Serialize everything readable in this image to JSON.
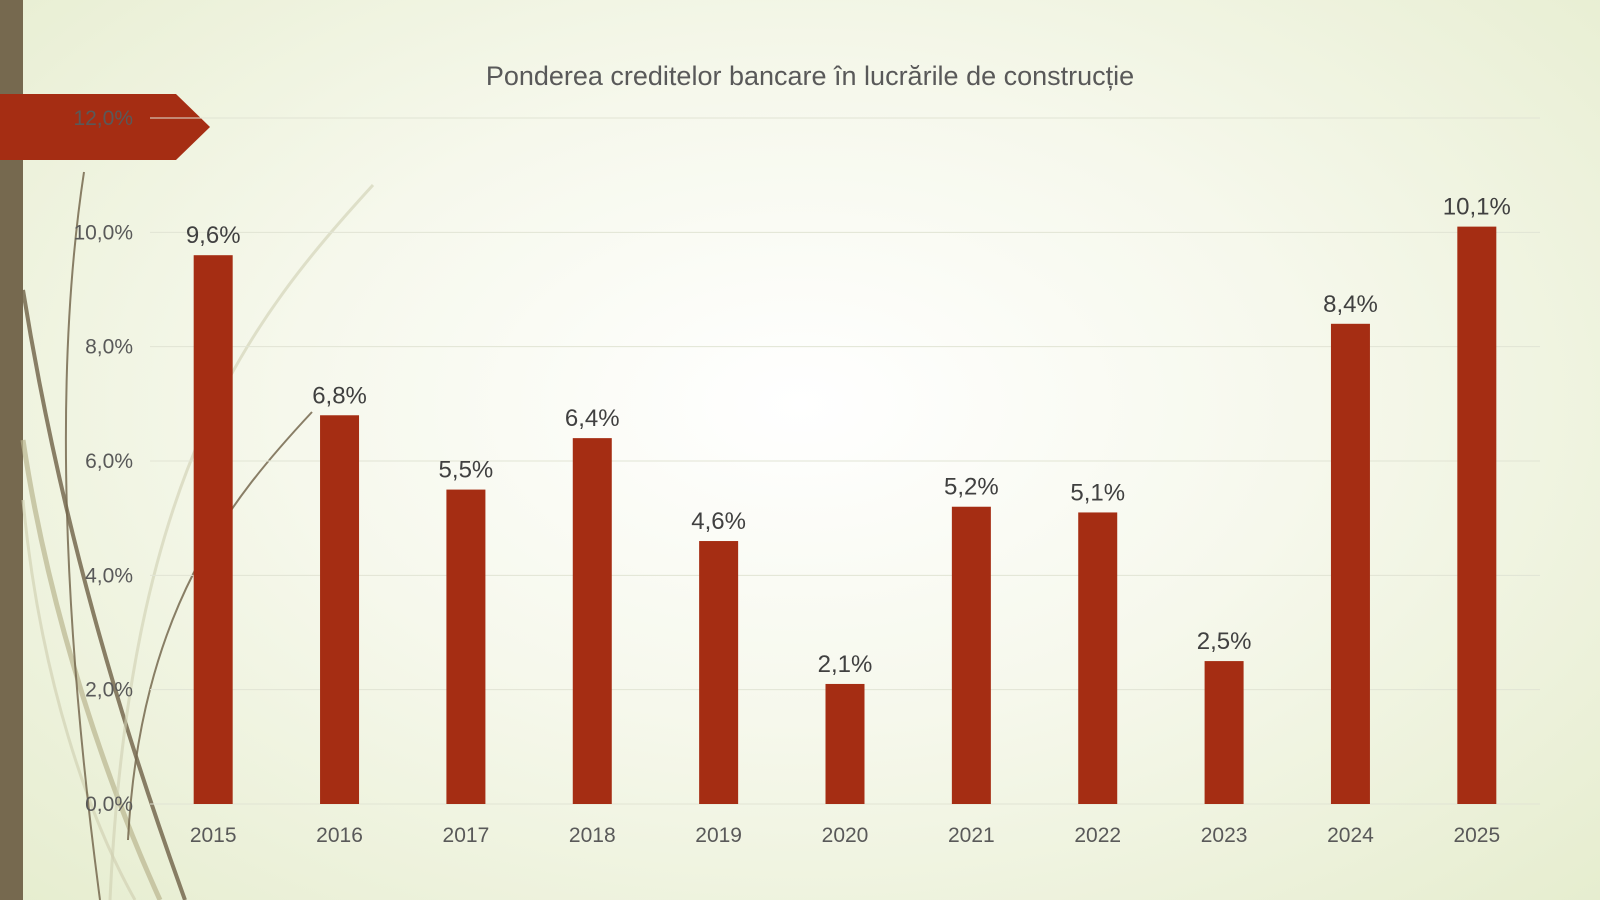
{
  "colors": {
    "bar": "#a52d13",
    "ribbon": "#a52d13",
    "side_bar": "#76694f",
    "gridline": "#e1e4d4",
    "text": "#595959"
  },
  "chart_data": {
    "type": "bar",
    "title": "Ponderea creditelor bancare în lucrările de construcție",
    "xlabel": "",
    "ylabel": "",
    "ylim": [
      0,
      12
    ],
    "yticks": [
      0,
      2,
      4,
      6,
      8,
      10,
      12
    ],
    "ytick_labels": [
      "0,0%",
      "2,0%",
      "4,0%",
      "6,0%",
      "8,0%",
      "10,0%",
      "12,0%"
    ],
    "categories": [
      "2015",
      "2016",
      "2017",
      "2018",
      "2019",
      "2020",
      "2021",
      "2022",
      "2023",
      "2024",
      "2025"
    ],
    "values": [
      9.6,
      6.8,
      5.5,
      6.4,
      4.6,
      2.1,
      5.2,
      5.1,
      2.5,
      8.4,
      10.1
    ],
    "data_labels": [
      "9,6%",
      "6,8%",
      "5,5%",
      "6,4%",
      "4,6%",
      "2,1%",
      "5,2%",
      "5,1%",
      "2,5%",
      "8,4%",
      "10,1%"
    ],
    "grid": true,
    "legend": "none"
  }
}
